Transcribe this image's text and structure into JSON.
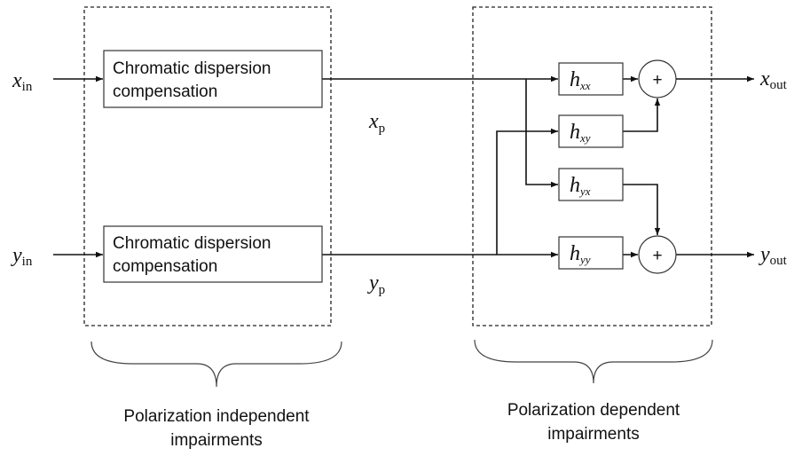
{
  "inputs": [
    {
      "var": "x",
      "sub": "in"
    },
    {
      "var": "y",
      "sub": "in"
    }
  ],
  "cd_blocks": [
    {
      "lines": [
        "Chromatic dispersion",
        "compensation"
      ]
    },
    {
      "lines": [
        "Chromatic dispersion",
        "compensation"
      ]
    }
  ],
  "intermediate": [
    {
      "var": "x",
      "sub": "p"
    },
    {
      "var": "y",
      "sub": "p"
    }
  ],
  "filters": [
    {
      "var": "h",
      "sub": "xx"
    },
    {
      "var": "h",
      "sub": "xy"
    },
    {
      "var": "h",
      "sub": "yx"
    },
    {
      "var": "h",
      "sub": "yy"
    }
  ],
  "adders": [
    "+",
    "+"
  ],
  "outputs": [
    {
      "var": "x",
      "sub": "out"
    },
    {
      "var": "y",
      "sub": "out"
    }
  ],
  "groups": [
    {
      "lines": [
        "Polarization independent",
        "impairments"
      ]
    },
    {
      "lines": [
        "Polarization dependent",
        "impairments"
      ]
    }
  ]
}
